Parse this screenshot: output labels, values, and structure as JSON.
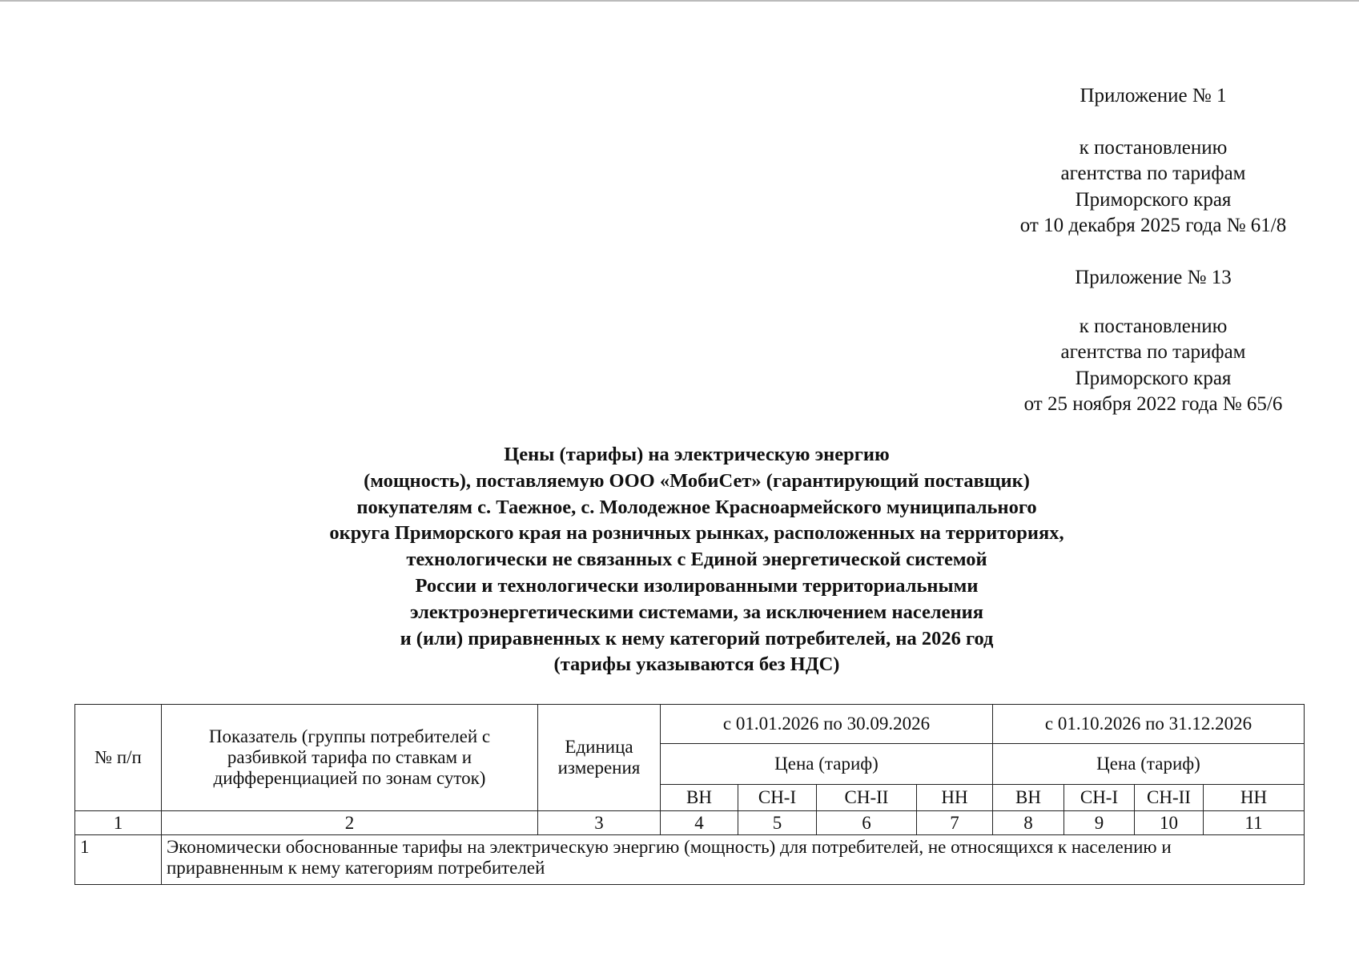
{
  "appendix1": {
    "title": "Приложение № 1",
    "lines": [
      "к постановлению",
      "агентства по тарифам",
      "Приморского края",
      "от 10 декабря 2025 года № 61/8"
    ]
  },
  "appendix13": {
    "title": "Приложение № 13",
    "lines": [
      "к постановлению",
      "агентства по тарифам",
      "Приморского края",
      "от 25 ноября 2022 года № 65/6"
    ]
  },
  "document_title": [
    "Цены (тарифы) на электрическую энергию",
    "(мощность), поставляемую ООО «МобиСет» (гарантирующий поставщик)",
    "покупателям с. Таежное, с. Молодежное Красноармейского муниципального",
    "округа Приморского края на розничных рынках, расположенных на территориях,",
    "технологически не связанных с Единой энергетической системой",
    "России и технологически изолированными территориальными",
    "электроэнергетическими системами, за исключением населения",
    "и (или) приравненных к нему категорий потребителей, на 2026 год",
    "(тарифы указываются без НДС)"
  ],
  "table": {
    "header": {
      "num": "№ п/п",
      "indicator": "Показатель (группы потребителей с разбивкой тарифа по ставкам и дифференциацией по зонам суток)",
      "unit": "Единица измерения",
      "period1": "с 01.01.2026 по 30.09.2026",
      "period2": "с 01.10.2026 по 31.12.2026",
      "price1": "Цена (тариф)",
      "price2": "Цена (тариф)",
      "levels": [
        "ВН",
        "СН-I",
        "СН-II",
        "НН",
        "ВН",
        "СН-I",
        "СН-II",
        "НН"
      ]
    },
    "column_numbers": [
      "1",
      "2",
      "3",
      "4",
      "5",
      "6",
      "7",
      "8",
      "9",
      "10",
      "11"
    ],
    "rows": [
      {
        "num": "1",
        "text": "Экономически обоснованные тарифы на электрическую энергию (мощность) для потребителей, не относящихся к населению и приравненным к нему категориям потребителей"
      }
    ]
  }
}
